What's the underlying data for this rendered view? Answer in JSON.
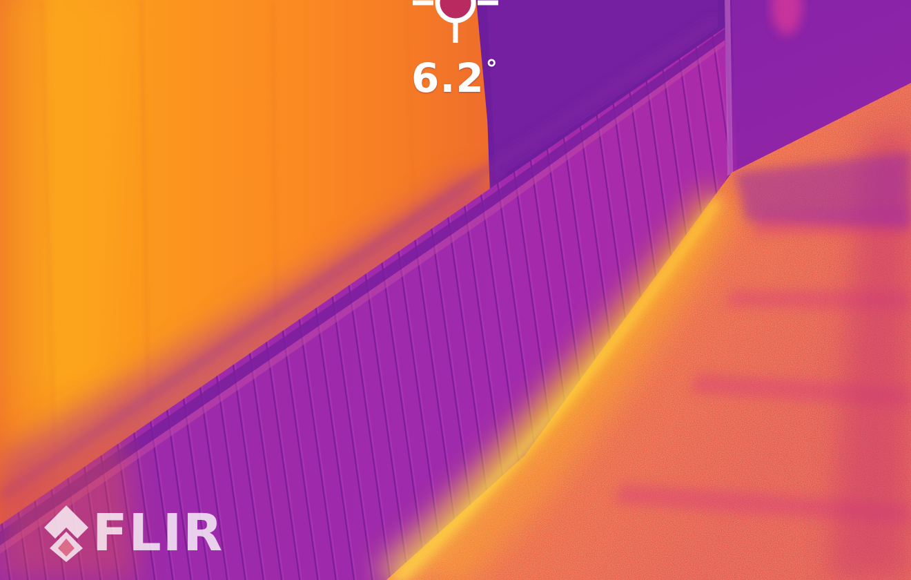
{
  "image": {
    "palette": "iron",
    "colors": {
      "hot": "#ffd21a",
      "warm": "#fb8a1e",
      "mid": "#ee5b3d",
      "cool": "#b426b0",
      "cold": "#6a1fa0"
    }
  },
  "measurement": {
    "value": "6.2",
    "unit": "°",
    "reticle_icon": "crosshair-spot-icon"
  },
  "brand": {
    "logo_icon": "flir-diamond-icon",
    "logo_text": "FLIR"
  }
}
